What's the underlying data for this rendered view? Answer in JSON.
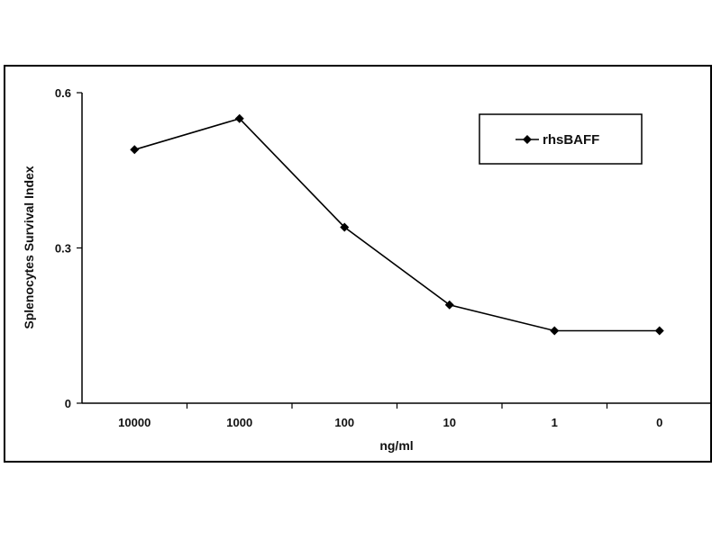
{
  "chart_data": {
    "type": "line",
    "title": "",
    "xlabel": "ng/ml",
    "ylabel": "Splenocytes Survival Index",
    "categories": [
      "10000",
      "1000",
      "100",
      "10",
      "1",
      "0"
    ],
    "series": [
      {
        "name": "rhsBAFF",
        "values": [
          0.49,
          0.55,
          0.34,
          0.19,
          0.14,
          0.14
        ],
        "color": "#000000",
        "marker": "diamond"
      }
    ],
    "ylim": [
      0,
      0.6
    ],
    "yticks": [
      0,
      0.3,
      0.6
    ],
    "ytick_labels": [
      "0",
      "0.3",
      "0.6"
    ],
    "grid": false,
    "legend": "top-right"
  }
}
